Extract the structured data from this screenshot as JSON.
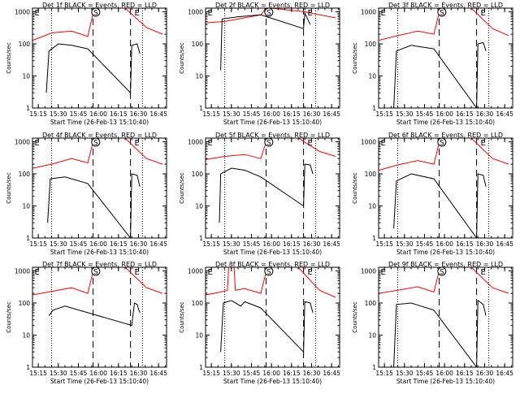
{
  "chart_data": [
    {
      "type": "line",
      "title": "Det 1f BLACK = Events, RED = LLD",
      "xlabel": "Start Time (26-Feb-13 15:10:40)",
      "ylabel": "Counts/sec",
      "x_unit": "hh:mm",
      "x_ticks": [
        "15:15",
        "15:30",
        "15:45",
        "16:00",
        "16:15",
        "16:30",
        "16:45"
      ],
      "y_ticks": [
        "1",
        "10",
        "100",
        "1000"
      ],
      "y_scale": "log",
      "ylim": [
        1,
        1300
      ],
      "xlim": [
        "15:10:40",
        "16:51:00"
      ],
      "markers": {
        "E_left": "15:11",
        "S": "15:58",
        "E_right": "16:27"
      },
      "dotted_lines": [
        "15:25",
        "16:33"
      ],
      "dashed_lines": [
        "15:56",
        "16:24"
      ],
      "series": [
        {
          "color": "#ff0000",
          "x": [
            "15:11",
            "15:20",
            "15:25",
            "15:40",
            "15:52",
            "15:56",
            "16:00",
            "16:20",
            "16:36",
            "16:48"
          ],
          "y": [
            130,
            180,
            220,
            250,
            170,
            900,
            1300,
            1300,
            320,
            200
          ]
        },
        {
          "color": "#000000",
          "x": [
            "15:21",
            "15:23",
            "15:30",
            "15:40",
            "15:52",
            "16:24",
            "16:25",
            "16:29",
            "16:31"
          ],
          "y": [
            3,
            60,
            100,
            90,
            70,
            3,
            90,
            100,
            50
          ]
        }
      ]
    },
    {
      "type": "line",
      "title": "Det 2f BLACK = Events, RED = LLD",
      "xlabel": "Start Time (26-Feb-13 15:10:40)",
      "ylabel": "Counts/sec",
      "x_unit": "hh:mm",
      "x_ticks": [
        "15:15",
        "15:30",
        "15:45",
        "16:00",
        "16:15",
        "16:30",
        "16:45"
      ],
      "y_ticks": [
        "1",
        "10",
        "100",
        "1000"
      ],
      "y_scale": "log",
      "ylim": [
        1,
        1300
      ],
      "xlim": [
        "15:10:40",
        "16:51:00"
      ],
      "markers": {
        "E_left": "15:11",
        "S": "15:58",
        "E_right": "16:27"
      },
      "dotted_lines": [
        "15:25",
        "16:33"
      ],
      "dashed_lines": [
        "15:56",
        "16:24"
      ],
      "series": [
        {
          "color": "#ff0000",
          "x": [
            "15:11",
            "15:25",
            "15:40",
            "15:52",
            "15:56",
            "16:00",
            "16:25",
            "16:36",
            "16:48"
          ],
          "y": [
            450,
            500,
            650,
            800,
            1300,
            1300,
            1000,
            800,
            650
          ]
        },
        {
          "color": "#000000",
          "x": [
            "15:22",
            "15:23",
            "15:35",
            "15:52",
            "16:24",
            "16:25",
            "16:29"
          ],
          "y": [
            15,
            600,
            700,
            800,
            300,
            900,
            400
          ]
        }
      ]
    },
    {
      "type": "line",
      "title": "Det 3f BLACK = Events, RED = LLD",
      "xlabel": "Start Time (26-Feb-13 15:10:40)",
      "ylabel": "Counts/sec",
      "x_unit": "hh:mm",
      "x_ticks": [
        "15:15",
        "15:30",
        "15:45",
        "16:00",
        "16:15",
        "16:30",
        "16:45"
      ],
      "y_ticks": [
        "1",
        "10",
        "100",
        "1000"
      ],
      "y_scale": "log",
      "ylim": [
        1,
        1300
      ],
      "xlim": [
        "15:10:40",
        "16:51:00"
      ],
      "markers": {
        "E_left": "15:11",
        "S": "15:58",
        "E_right": "16:27"
      },
      "dotted_lines": [
        "15:25",
        "16:33"
      ],
      "dashed_lines": [
        "15:56",
        "16:24"
      ],
      "series": [
        {
          "color": "#ff0000",
          "x": [
            "15:11",
            "15:25",
            "15:40",
            "15:52",
            "15:56",
            "16:00",
            "16:20",
            "16:36",
            "16:48"
          ],
          "y": [
            130,
            180,
            250,
            200,
            950,
            1300,
            1300,
            300,
            180
          ]
        },
        {
          "color": "#000000",
          "x": [
            "15:22",
            "15:24",
            "15:35",
            "15:52",
            "16:24",
            "16:25",
            "16:29",
            "16:31"
          ],
          "y": [
            1,
            60,
            90,
            70,
            1,
            100,
            110,
            60
          ]
        }
      ]
    },
    {
      "type": "line",
      "title": "Det 4f BLACK = Events, RED = LLD",
      "xlabel": "Start Time (26-Feb-13 15:10:40)",
      "ylabel": "Counts/sec",
      "x_unit": "hh:mm",
      "x_ticks": [
        "15:15",
        "15:30",
        "15:45",
        "16:00",
        "16:15",
        "16:30",
        "16:45"
      ],
      "y_ticks": [
        "1",
        "10",
        "100",
        "1000"
      ],
      "y_scale": "log",
      "ylim": [
        1,
        1300
      ],
      "xlim": [
        "15:10:40",
        "16:51:00"
      ],
      "markers": {
        "E_left": "15:11",
        "S": "15:58",
        "E_right": "16:27"
      },
      "dotted_lines": [
        "15:25",
        "16:33"
      ],
      "dashed_lines": [
        "15:56",
        "16:24"
      ],
      "series": [
        {
          "color": "#ff0000",
          "x": [
            "15:11",
            "15:25",
            "15:40",
            "15:52",
            "15:56",
            "16:00",
            "16:20",
            "16:36",
            "16:48"
          ],
          "y": [
            150,
            200,
            300,
            220,
            1000,
            1300,
            1300,
            300,
            200
          ]
        },
        {
          "color": "#000000",
          "x": [
            "15:22",
            "15:24",
            "15:35",
            "15:52",
            "16:24",
            "16:25",
            "16:29",
            "16:31"
          ],
          "y": [
            3,
            70,
            80,
            50,
            1,
            100,
            90,
            40
          ]
        }
      ]
    },
    {
      "type": "line",
      "title": "Det 5f BLACK = Events, RED = LLD",
      "xlabel": "Start Time (26-Feb-13 15:10:40)",
      "ylabel": "Counts/sec",
      "x_unit": "hh:mm",
      "x_ticks": [
        "15:15",
        "15:30",
        "15:45",
        "16:00",
        "16:15",
        "16:30",
        "16:45"
      ],
      "y_ticks": [
        "1",
        "10",
        "100",
        "1000"
      ],
      "y_scale": "log",
      "ylim": [
        1,
        1300
      ],
      "xlim": [
        "15:10:40",
        "16:51:00"
      ],
      "markers": {
        "E_left": "15:11",
        "S": "15:58",
        "E_right": "16:27"
      },
      "dotted_lines": [
        "15:25",
        "16:33"
      ],
      "dashed_lines": [
        "15:56",
        "16:24"
      ],
      "series": [
        {
          "color": "#ff0000",
          "x": [
            "15:11",
            "15:25",
            "15:40",
            "15:52",
            "15:56",
            "16:00",
            "16:20",
            "16:36",
            "16:48"
          ],
          "y": [
            280,
            350,
            400,
            300,
            1000,
            1300,
            1300,
            500,
            350
          ]
        },
        {
          "color": "#000000",
          "x": [
            "15:21",
            "15:22",
            "15:30",
            "15:40",
            "15:52",
            "16:24",
            "16:25",
            "16:29",
            "16:31"
          ],
          "y": [
            3,
            100,
            150,
            130,
            80,
            10,
            200,
            190,
            100
          ]
        }
      ]
    },
    {
      "type": "line",
      "title": "Det 6f BLACK = Events, RED = LLD",
      "xlabel": "Start Time (26-Feb-13 15:10:40)",
      "ylabel": "Counts/sec",
      "x_unit": "hh:mm",
      "x_ticks": [
        "15:15",
        "15:30",
        "15:45",
        "16:00",
        "16:15",
        "16:30",
        "16:45"
      ],
      "y_ticks": [
        "1",
        "10",
        "100",
        "1000"
      ],
      "y_scale": "log",
      "ylim": [
        1,
        1300
      ],
      "xlim": [
        "15:10:40",
        "16:51:00"
      ],
      "markers": {
        "E_left": "15:11",
        "S": "15:58",
        "E_right": "16:27"
      },
      "dotted_lines": [
        "15:25",
        "16:33"
      ],
      "dashed_lines": [
        "15:56",
        "16:24"
      ],
      "series": [
        {
          "color": "#ff0000",
          "x": [
            "15:11",
            "15:25",
            "15:40",
            "15:52",
            "15:56",
            "16:00",
            "16:20",
            "16:36",
            "16:48"
          ],
          "y": [
            130,
            190,
            260,
            200,
            950,
            1300,
            1300,
            300,
            200
          ]
        },
        {
          "color": "#000000",
          "x": [
            "15:22",
            "15:24",
            "15:35",
            "15:52",
            "16:24",
            "16:25",
            "16:29",
            "16:31"
          ],
          "y": [
            2,
            60,
            100,
            70,
            1,
            100,
            90,
            40
          ]
        }
      ]
    },
    {
      "type": "line",
      "title": "Det 7f BLACK = Events, RED = LLD",
      "xlabel": "Start Time (26-Feb-13 15:10:40)",
      "ylabel": "Counts/sec",
      "x_unit": "hh:mm",
      "x_ticks": [
        "15:15",
        "15:30",
        "15:45",
        "16:00",
        "16:15",
        "16:30",
        "16:45"
      ],
      "y_ticks": [
        "1",
        "10",
        "100",
        "1000"
      ],
      "y_scale": "log",
      "ylim": [
        1,
        1300
      ],
      "xlim": [
        "15:10:40",
        "16:51:00"
      ],
      "markers": {
        "E_left": "15:11",
        "S": "15:58",
        "E_right": "16:27"
      },
      "dotted_lines": [
        "15:25",
        "16:33"
      ],
      "dashed_lines": [
        "15:56",
        "16:24"
      ],
      "series": [
        {
          "color": "#ff0000",
          "x": [
            "15:11",
            "15:25",
            "15:40",
            "15:52",
            "15:56",
            "16:00",
            "16:20",
            "16:36",
            "16:48"
          ],
          "y": [
            180,
            230,
            300,
            200,
            950,
            1300,
            1300,
            300,
            200
          ]
        },
        {
          "color": "#000000",
          "x": [
            "15:23",
            "15:26",
            "15:35",
            "15:52",
            "16:25",
            "16:27",
            "16:29",
            "16:31"
          ],
          "y": [
            40,
            60,
            80,
            50,
            20,
            100,
            90,
            50
          ]
        }
      ]
    },
    {
      "type": "line",
      "title": "Det 8f BLACK = Events, RED = LLD",
      "xlabel": "Start Time (26-Feb-13 15:10:40)",
      "ylabel": "Counts/sec",
      "x_unit": "hh:mm",
      "x_ticks": [
        "15:15",
        "15:30",
        "15:45",
        "16:00",
        "16:15",
        "16:30",
        "16:45"
      ],
      "y_ticks": [
        "1",
        "10",
        "100",
        "1000"
      ],
      "y_scale": "log",
      "ylim": [
        1,
        1300
      ],
      "xlim": [
        "15:10:40",
        "16:51:00"
      ],
      "markers": {
        "E_left": "15:11",
        "S": "15:58",
        "E_right": "16:27"
      },
      "dotted_lines": [
        "15:25",
        "16:33"
      ],
      "dashed_lines": [
        "15:56",
        "16:24"
      ],
      "series": [
        {
          "color": "#ff0000",
          "x": [
            "15:11",
            "15:22",
            "15:27",
            "15:28",
            "15:32",
            "15:33",
            "15:40",
            "15:52",
            "15:56",
            "16:00",
            "16:20",
            "16:36",
            "16:48"
          ],
          "y": [
            180,
            220,
            250,
            1300,
            1300,
            250,
            280,
            200,
            950,
            1300,
            1300,
            250,
            150
          ]
        },
        {
          "color": "#000000",
          "x": [
            "15:22",
            "15:24",
            "15:30",
            "15:37",
            "15:40",
            "15:52",
            "16:24",
            "16:25",
            "16:29",
            "16:31"
          ],
          "y": [
            3,
            100,
            120,
            80,
            110,
            70,
            3,
            110,
            100,
            50
          ]
        }
      ]
    },
    {
      "type": "line",
      "title": "Det 9f BLACK = Events, RED = LLD",
      "xlabel": "Start Time (26-Feb-13 15:10:40)",
      "ylabel": "Counts/sec",
      "x_unit": "hh:mm",
      "x_ticks": [
        "15:15",
        "15:30",
        "15:45",
        "16:00",
        "16:15",
        "16:30",
        "16:45"
      ],
      "y_ticks": [
        "1",
        "10",
        "100",
        "1000"
      ],
      "y_scale": "log",
      "ylim": [
        1,
        1300
      ],
      "xlim": [
        "15:10:40",
        "16:51:00"
      ],
      "markers": {
        "E_left": "15:11",
        "S": "15:58",
        "E_right": "16:27"
      },
      "dotted_lines": [
        "15:25",
        "16:33"
      ],
      "dashed_lines": [
        "15:56",
        "16:24"
      ],
      "series": [
        {
          "color": "#ff0000",
          "x": [
            "15:11",
            "15:25",
            "15:40",
            "15:52",
            "15:56",
            "16:00",
            "16:20",
            "16:36",
            "16:48"
          ],
          "y": [
            200,
            250,
            320,
            220,
            1000,
            1300,
            1300,
            300,
            200
          ]
        },
        {
          "color": "#000000",
          "x": [
            "15:22",
            "15:24",
            "15:35",
            "15:52",
            "16:24",
            "16:25",
            "16:29",
            "16:31"
          ],
          "y": [
            1,
            90,
            100,
            60,
            1,
            120,
            90,
            40
          ]
        }
      ]
    }
  ]
}
